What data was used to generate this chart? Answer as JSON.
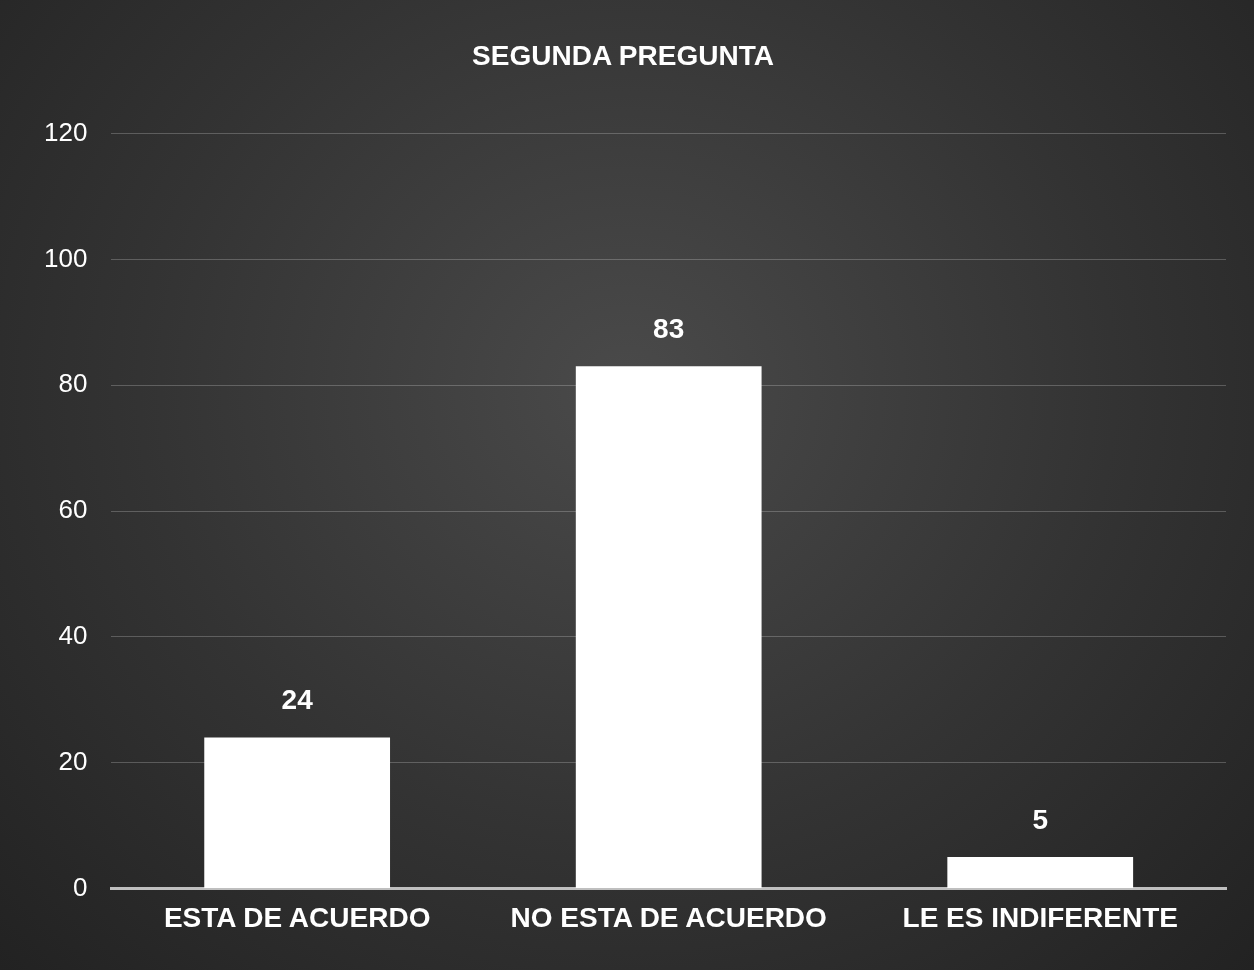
{
  "chart_data": {
    "type": "bar",
    "title": "SEGUNDA PREGUNTA",
    "categories": [
      "ESTA DE ACUERDO",
      "NO ESTA DE ACUERDO",
      "LE ES INDIFERENTE"
    ],
    "values": [
      24,
      83,
      5
    ],
    "color": "#ffffff",
    "ylim": [
      0,
      120
    ],
    "yticks": [
      0,
      20,
      40,
      60,
      80,
      100,
      120
    ],
    "grid": "y",
    "data_labels": true,
    "legend": false
  }
}
